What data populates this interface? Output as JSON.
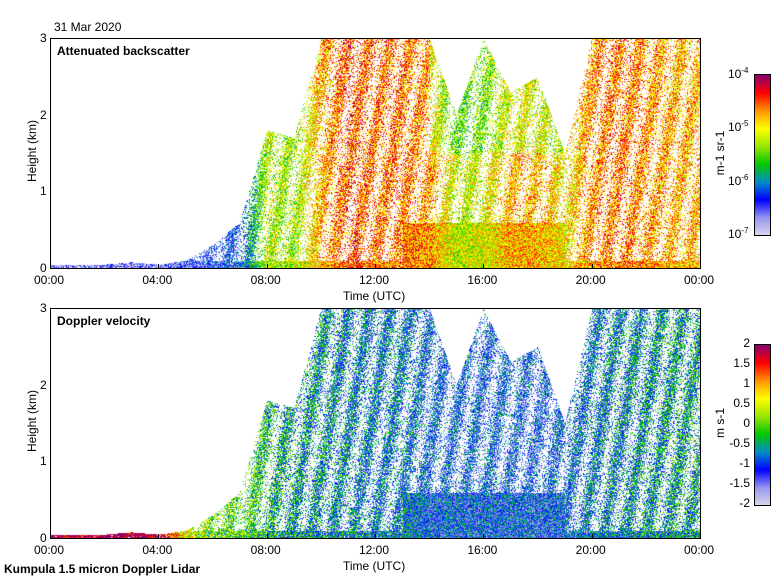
{
  "date": "31 Mar 2020",
  "footer": "Kumpula 1.5 micron Doppler Lidar",
  "chart_data": [
    {
      "type": "heatmap",
      "title": "Attenuated backscatter",
      "xlabel": "Time (UTC)",
      "ylabel": "Height (km)",
      "xticks": [
        "00:00",
        "04:00",
        "08:00",
        "12:00",
        "16:00",
        "20:00",
        "00:00"
      ],
      "yticks": [
        "0",
        "1",
        "2",
        "3"
      ],
      "xlim_hours": [
        0,
        24
      ],
      "ylim_km": [
        0,
        3
      ],
      "colorbar": {
        "label": "m-1 sr-1",
        "scale": "log",
        "range": [
          1e-07,
          0.0001
        ],
        "ticks": [
          "10-7",
          "10-6",
          "10-5",
          "10-4"
        ]
      },
      "hourly_signal_top_km": [
        0.05,
        0.05,
        0.05,
        0.08,
        0.05,
        0.1,
        0.3,
        0.6,
        1.8,
        1.7,
        3,
        3,
        3,
        3,
        3,
        2,
        3,
        2.3,
        2.5,
        1.5,
        3,
        3,
        3,
        3
      ],
      "hourly_log10_peak": [
        -6.7,
        -6.7,
        -6.7,
        -6.7,
        -6.6,
        -6.5,
        -6.4,
        -6.3,
        -5.2,
        -5.3,
        -4.8,
        -4.5,
        -4.6,
        -4.6,
        -4.7,
        -5.2,
        -5.1,
        -4.8,
        -4.8,
        -5.0,
        -4.7,
        -4.6,
        -4.7,
        -4.8
      ]
    },
    {
      "type": "heatmap",
      "title": "Doppler velocity",
      "xlabel": "Time (UTC)",
      "ylabel": "Height (km)",
      "xticks": [
        "00:00",
        "04:00",
        "08:00",
        "12:00",
        "16:00",
        "20:00",
        "00:00"
      ],
      "yticks": [
        "0",
        "1",
        "2",
        "3"
      ],
      "xlim_hours": [
        0,
        24
      ],
      "ylim_km": [
        0,
        3
      ],
      "colorbar": {
        "label": "m s-1",
        "scale": "linear",
        "range": [
          -2,
          2
        ],
        "ticks": [
          "2",
          "1.5",
          "1",
          "0.5",
          "0",
          "-0.5",
          "-1",
          "-1.5",
          "-2"
        ]
      },
      "hourly_signal_top_km": [
        0.05,
        0.05,
        0.05,
        0.08,
        0.05,
        0.1,
        0.3,
        0.6,
        1.8,
        1.7,
        3,
        3,
        3,
        3,
        3,
        2,
        3,
        2.3,
        2.5,
        1.5,
        3,
        3,
        3,
        3
      ],
      "hourly_mean_velocity_ms": [
        2,
        2,
        2,
        2,
        2,
        0.5,
        0,
        0,
        -0.3,
        -0.5,
        -0.6,
        -0.7,
        -0.8,
        -0.8,
        -1,
        -1,
        -1,
        -1,
        -1.1,
        -1,
        -0.8,
        -0.7,
        -0.6,
        -0.5
      ]
    }
  ]
}
